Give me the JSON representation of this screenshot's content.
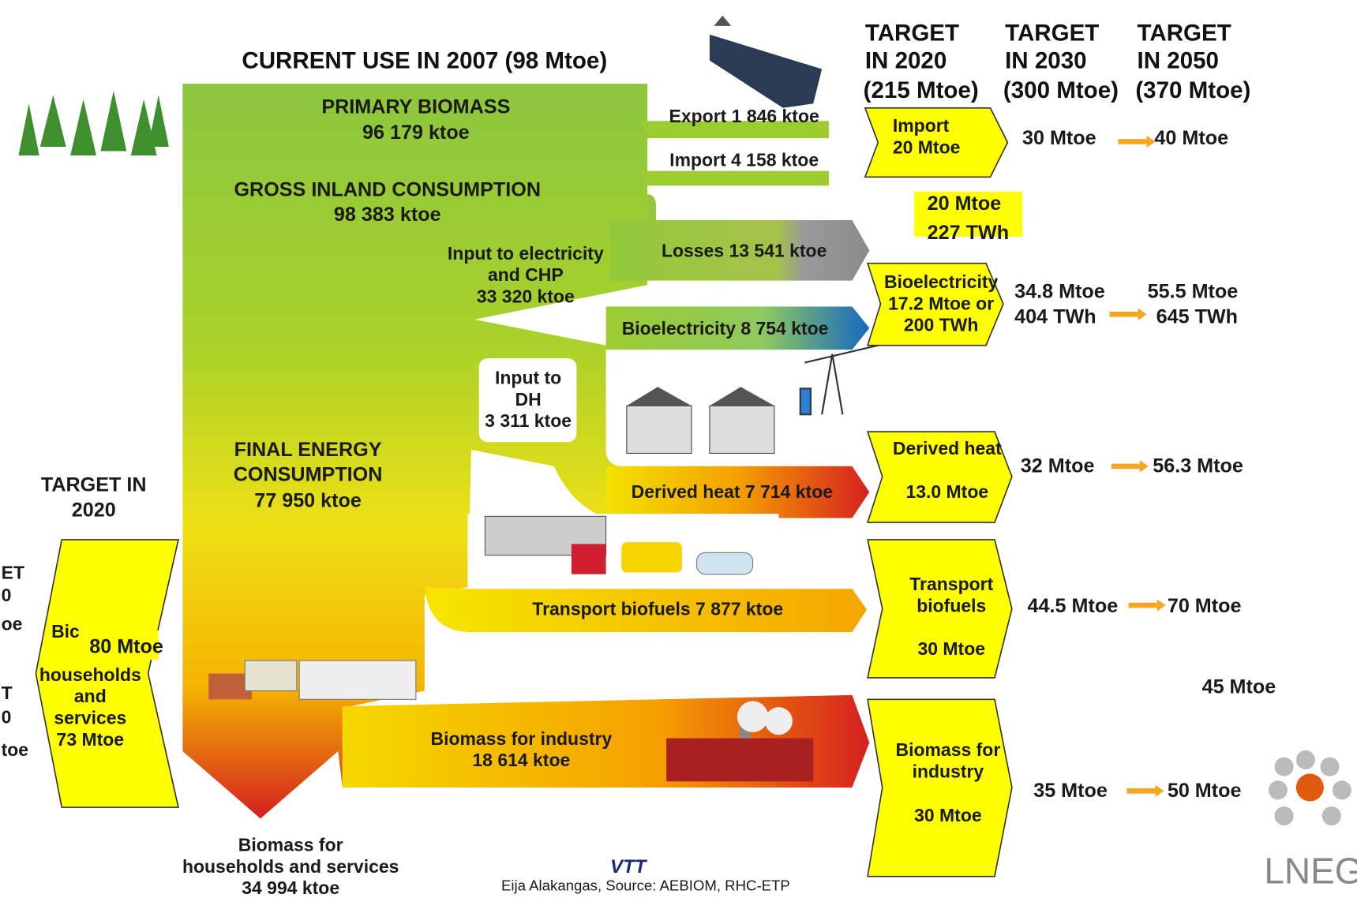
{
  "title": "CURRENT USE IN 2007 (98 Mtoe)",
  "target_headers": [
    [
      "TARGET",
      "IN 2020",
      "(215 Mtoe)"
    ],
    [
      "TARGET",
      "IN 2030",
      "(300 Mtoe)"
    ],
    [
      "TARGET",
      "IN 2050",
      "(370 Mtoe)"
    ]
  ],
  "flows": {
    "primary": [
      "PRIMARY BIOMASS",
      "96 179 ktoe"
    ],
    "gross": [
      "GROSS INLAND CONSUMPTION",
      "98 383 ktoe"
    ],
    "export": "Export 1 846 ktoe",
    "import": "Import 4 158 ktoe",
    "losses": "Losses 13 541 ktoe",
    "input_electricity": [
      "Input to electricity",
      "and CHP",
      "33 320 ktoe"
    ],
    "bioelectricity": "Bioelectricity 8 754 ktoe",
    "input_dh": [
      "Input to",
      "DH",
      "3 311 ktoe"
    ],
    "derived_heat": "Derived heat 7 714 ktoe",
    "final": [
      "FINAL ENERGY",
      "CONSUMPTION",
      "77 950 ktoe"
    ],
    "transport": "Transport biofuels 7 877 ktoe",
    "industry": [
      "Biomass for industry",
      "18 614 ktoe"
    ],
    "households": [
      "Biomass for",
      "households and services",
      "34 994 ktoe"
    ]
  },
  "left_target": {
    "header": [
      "TARGET IN",
      "2020"
    ],
    "arrow": [
      "Bic",
      "households",
      "and",
      "services",
      "73 Mtoe"
    ],
    "overlay": "80 Mtoe",
    "cut_text": [
      "ET",
      "0",
      "oe",
      "T",
      "0",
      "toe"
    ]
  },
  "right_targets": [
    {
      "arrow": [
        "Import",
        "20 Mtoe"
      ],
      "t2030": [
        "30 Mtoe"
      ],
      "t2050": [
        "40 Mtoe"
      ]
    },
    {
      "arrow": [
        "Bioelectricity",
        "17.2 Mtoe or",
        "200 TWh"
      ],
      "t2030": [
        "34.8 Mtoe",
        "404 TWh"
      ],
      "t2050": [
        "55.5 Mtoe",
        "645 TWh"
      ]
    },
    {
      "arrow": [
        "Derived heat",
        "13.0 Mtoe"
      ],
      "t2030": [
        "32 Mtoe"
      ],
      "t2050": [
        "56.3 Mtoe"
      ]
    },
    {
      "arrow": [
        "Transport",
        "biofuels",
        "30 Mtoe"
      ],
      "t2030": [
        "44.5 Mtoe"
      ],
      "t2050": [
        "70 Mtoe"
      ]
    },
    {
      "arrow": [
        "Biomass for",
        "industry",
        "30 Mtoe"
      ],
      "t2030": [
        "35 Mtoe"
      ],
      "t2050": [
        "50 Mtoe"
      ]
    }
  ],
  "overlay_electricity": [
    "20 Mtoe",
    "227 TWh"
  ],
  "overlay_45": "45 Mtoe",
  "footer": {
    "credit": "Eija Alakangas,  Source: AEBIOM, RHC-ETP",
    "vtt": "VTT",
    "lneg": "LNEG"
  }
}
